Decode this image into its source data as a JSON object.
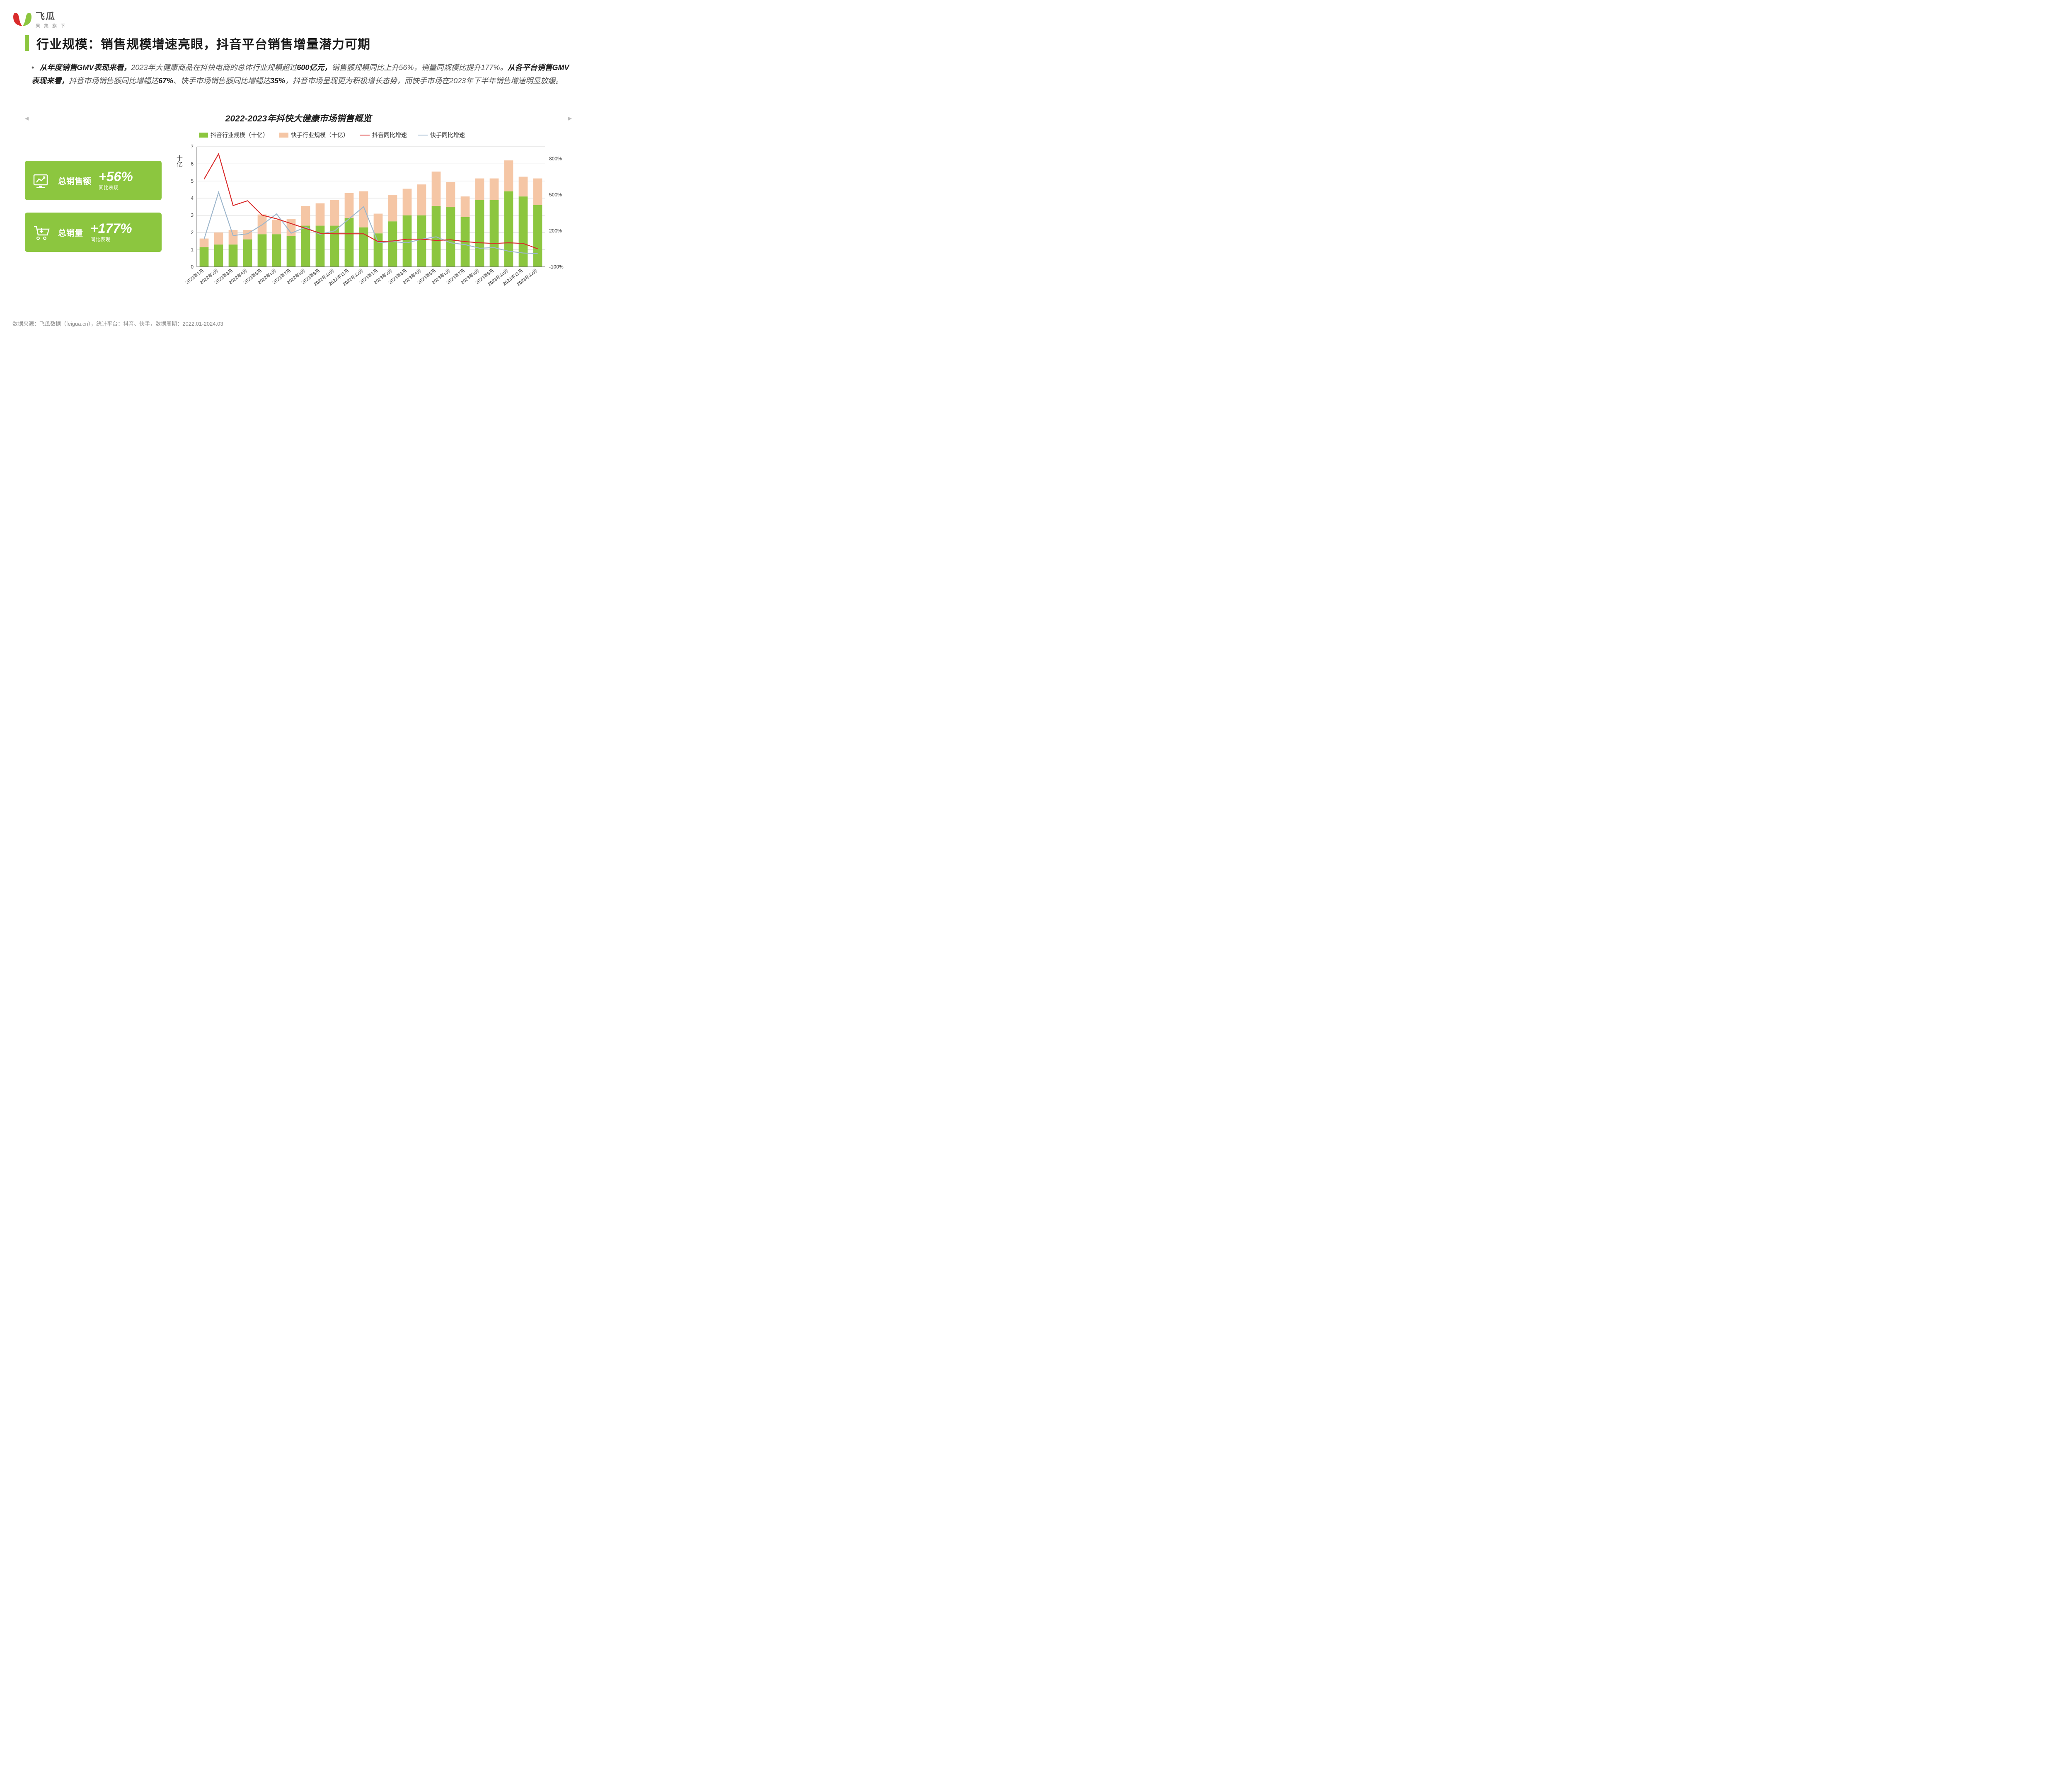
{
  "logo": {
    "main": "飞瓜",
    "sub": "果 集 旗 下"
  },
  "title": "行业规模：销售规模增速亮眼，抖音平台销售增量潜力可期",
  "body": {
    "prefix": "从年度销售GMV表现来看，",
    "seg1": "2023年大健康商品在抖快电商的总体行业规模超过",
    "bold_num": "600亿元，",
    "seg2": "销售额规模同比上升56%，销量同规模比提升177%。",
    "bold2": "从各平台销售GMV表现来看，",
    "seg3": "抖音市场销售额同比增幅达",
    "bold3": "67%",
    "seg4": "、快手市场销售额同比增幅达",
    "bold4": "35%",
    "seg5": "，抖音市场呈现更为积极增长态势，而快手市场在2023年下半年销售增速明显放缓。"
  },
  "chart_title": "2022-2023年抖快大健康市场销售概览",
  "stats": [
    {
      "label": "总销售额",
      "value": "+56%",
      "sub": "同比表现",
      "icon": "sales-icon"
    },
    {
      "label": "总销量",
      "value": "+177%",
      "sub": "同比表现",
      "icon": "volume-icon"
    }
  ],
  "legend": {
    "bar1": "抖音行业规模（十亿）",
    "bar2": "快手行业规模（十亿）",
    "line1": "抖音同比增速",
    "line2": "快手同比增速"
  },
  "chart": {
    "type": "bar+line",
    "ylabel": "十亿",
    "colors": {
      "douyin_bar": "#8cc63f",
      "kuaishou_bar": "#f5c6a5",
      "douyin_line": "#d92b2b",
      "kuaishou_line": "#9db6cc",
      "grid": "#d9d9d9",
      "axis": "#666666",
      "text": "#333333",
      "bg": "#ffffff"
    },
    "y_left": {
      "min": 0,
      "max": 7,
      "step": 1
    },
    "y_right": {
      "min": -100,
      "max": 900,
      "ticks": [
        -100,
        200,
        500,
        800
      ]
    },
    "categories": [
      "2022年1月",
      "2022年2月",
      "2022年3月",
      "2022年4月",
      "2022年5月",
      "2022年6月",
      "2022年7月",
      "2022年8月",
      "2022年9月",
      "2022年10月",
      "2022年11月",
      "2022年12月",
      "2023年1月",
      "2023年2月",
      "2023年3月",
      "2023年4月",
      "2023年5月",
      "2023年6月",
      "2023年7月",
      "2023年8月",
      "2023年9月",
      "2023年10月",
      "2023年11月",
      "2023年12月"
    ],
    "douyin_bar": [
      1.15,
      1.3,
      1.3,
      1.6,
      1.9,
      1.9,
      1.8,
      2.4,
      2.4,
      2.4,
      2.85,
      2.3,
      1.95,
      2.65,
      3.0,
      3.0,
      3.55,
      3.5,
      2.9,
      3.9,
      3.9,
      4.4,
      4.1,
      3.6
    ],
    "kuaishou_bar": [
      0.5,
      0.7,
      0.85,
      0.55,
      1.15,
      0.85,
      1.0,
      1.15,
      1.3,
      1.5,
      1.45,
      2.1,
      1.15,
      1.55,
      1.55,
      1.8,
      2.0,
      1.45,
      1.2,
      1.25,
      1.25,
      1.8,
      1.15,
      1.55
    ],
    "douyin_line_pct": [
      630,
      840,
      410,
      450,
      330,
      300,
      260,
      220,
      180,
      175,
      175,
      175,
      110,
      115,
      130,
      130,
      120,
      125,
      110,
      100,
      95,
      100,
      95,
      50
    ],
    "kuaishou_line_pct": [
      130,
      520,
      160,
      175,
      250,
      340,
      180,
      230,
      170,
      200,
      300,
      400,
      100,
      110,
      100,
      130,
      150,
      100,
      85,
      55,
      60,
      30,
      15,
      10
    ],
    "bar_width": 0.62,
    "font_size_axis": 12,
    "font_size_legend": 14,
    "line_width": 2.2
  },
  "footer": "数据来源：飞瓜数据（feigua.cn），统计平台：抖音、快手，数据周期：2022.01-2024.03"
}
